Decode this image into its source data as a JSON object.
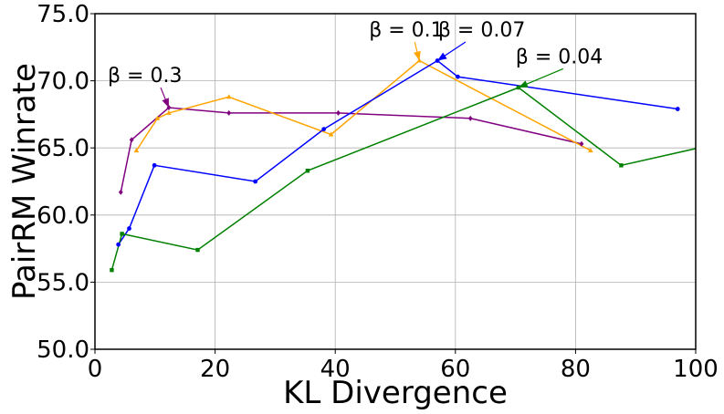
{
  "chart_data": {
    "type": "line",
    "title": "",
    "xlabel": "KL Divergence",
    "ylabel": "PairRM Winrate",
    "xlim": [
      0,
      100
    ],
    "ylim": [
      50,
      75
    ],
    "xticks": [
      0,
      20,
      40,
      60,
      80,
      100
    ],
    "xtick_labels": [
      "0",
      "20",
      "40",
      "60",
      "80",
      "100"
    ],
    "yticks": [
      50,
      55,
      60,
      65,
      70,
      75
    ],
    "ytick_labels": [
      "50.0",
      "55.0",
      "60.0",
      "65.0",
      "70.0",
      "75.0"
    ],
    "grid": true,
    "series": [
      {
        "name": "beta=0.3",
        "color": "#800080",
        "marker": "diamond",
        "points": [
          [
            4.3,
            61.7
          ],
          [
            6.1,
            65.6
          ],
          [
            12.3,
            68.0
          ],
          [
            22.3,
            67.6
          ],
          [
            40.5,
            67.6
          ],
          [
            62.5,
            67.2
          ],
          [
            81.0,
            65.3
          ]
        ]
      },
      {
        "name": "beta=0.1",
        "color": "#ffa500",
        "marker": "triangle",
        "points": [
          [
            6.9,
            64.8
          ],
          [
            10.4,
            67.2
          ],
          [
            12.3,
            67.6
          ],
          [
            22.3,
            68.8
          ],
          [
            39.3,
            66.0
          ],
          [
            54.0,
            71.5
          ],
          [
            82.5,
            64.8
          ]
        ]
      },
      {
        "name": "beta=0.07",
        "color": "#0000ff",
        "marker": "circle",
        "points": [
          [
            3.9,
            57.8
          ],
          [
            5.7,
            59.0
          ],
          [
            9.9,
            63.7
          ],
          [
            26.7,
            62.5
          ],
          [
            38.1,
            66.4
          ],
          [
            57.0,
            71.5
          ],
          [
            60.4,
            70.3
          ],
          [
            97.0,
            67.9
          ]
        ]
      },
      {
        "name": "beta=0.04",
        "color": "#008000",
        "marker": "square",
        "points": [
          [
            2.8,
            55.9
          ],
          [
            4.5,
            58.6
          ],
          [
            17.1,
            57.4
          ],
          [
            35.4,
            63.3
          ],
          [
            70.5,
            69.5
          ],
          [
            87.6,
            63.7
          ],
          [
            100.5,
            65.0
          ]
        ]
      }
    ],
    "annotations": [
      {
        "text": "β = 0.3",
        "xy": [
          12.3,
          68.0
        ],
        "xytext": [
          0.0,
          69.9
        ],
        "color": "#800080"
      },
      {
        "text": "β = 0.1",
        "xy": [
          54.0,
          71.5
        ],
        "xytext": [
          43.5,
          73.3
        ],
        "color": "#ffa500"
      },
      {
        "text": "β = 0.07",
        "xy": [
          57.0,
          71.5
        ],
        "xytext": [
          55.0,
          73.3
        ],
        "color": "#0000ff"
      },
      {
        "text": "β = 0.04",
        "xy": [
          70.5,
          69.5
        ],
        "xytext": [
          67.9,
          71.3
        ],
        "color": "#008000"
      }
    ]
  }
}
